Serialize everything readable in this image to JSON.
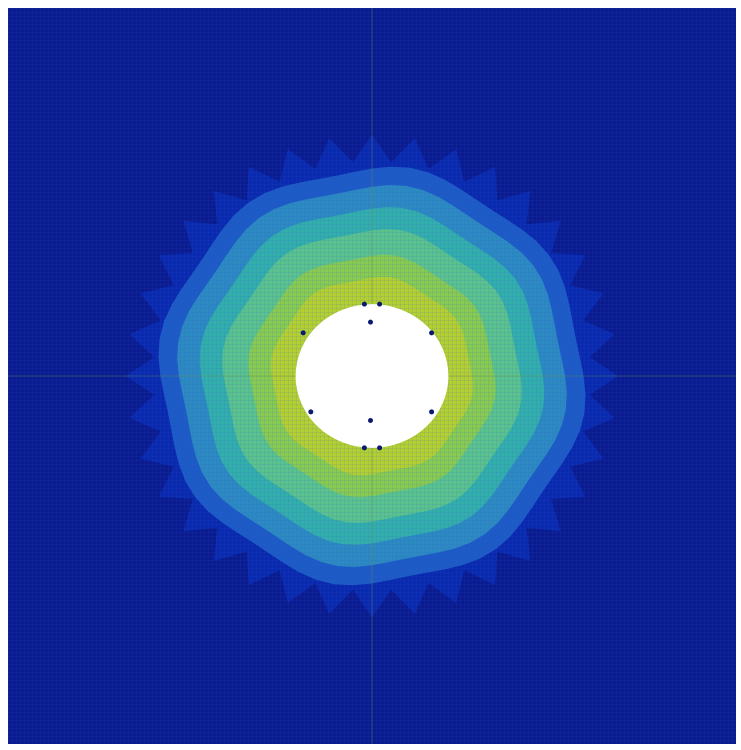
{
  "figure": {
    "description_visible_text": "",
    "colormap": [
      "#08159a",
      "#0a2fb8",
      "#1f5fc8",
      "#2f8fc0",
      "#33b3a8",
      "#5ec48a",
      "#8ccc4a",
      "#b8cf2e"
    ],
    "background_color": "#0a1a8f",
    "hole_color": "#ffffff",
    "mesh_line_color": "#2a48d0",
    "field": {
      "type": "radial-contour",
      "center": [
        0.5,
        0.5
      ],
      "hole_radius": 0.105,
      "levels": [
        0.86,
        0.74,
        0.62,
        0.5,
        0.38,
        0.26,
        0.14
      ],
      "ring_radii": [
        0.135,
        0.165,
        0.2,
        0.23,
        0.26,
        0.285,
        0.31
      ]
    }
  }
}
